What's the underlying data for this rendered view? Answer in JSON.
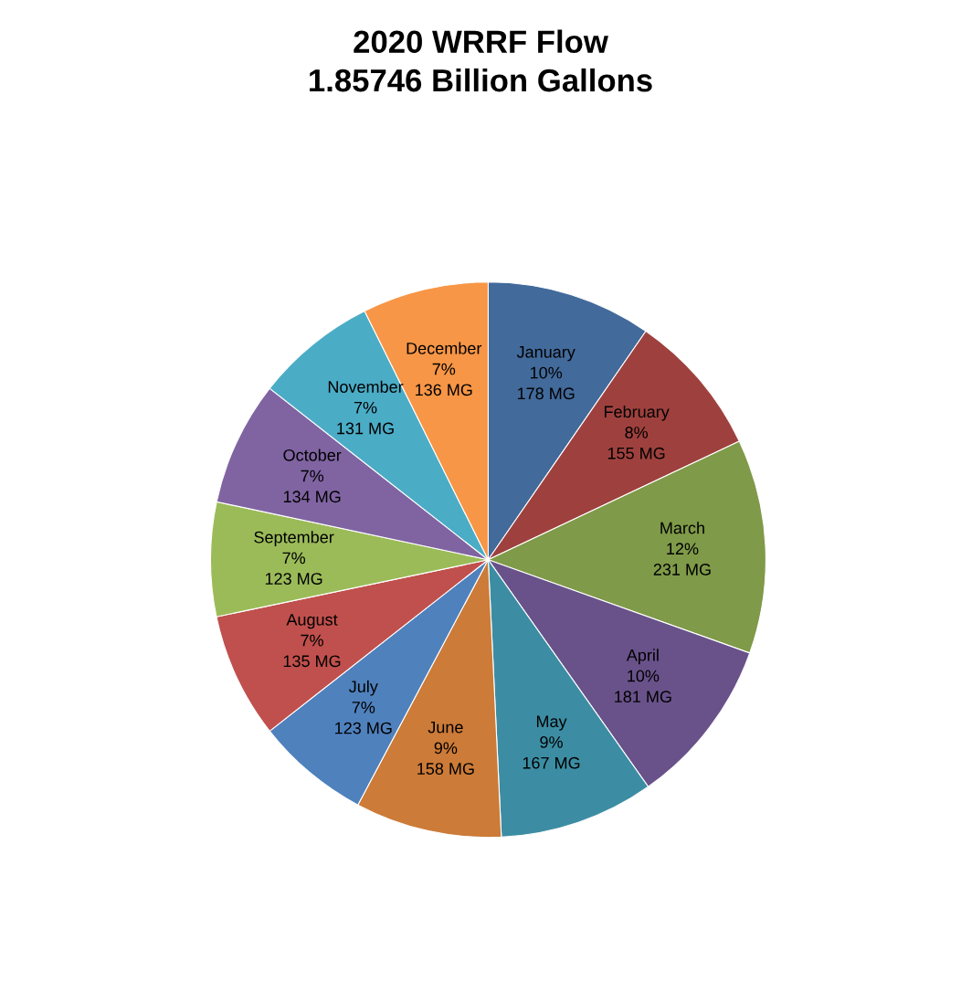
{
  "chart_data": {
    "type": "pie",
    "title": "2020 WRRF Flow\n1.85746 Billion Gallons",
    "categories": [
      "January",
      "February",
      "March",
      "April",
      "May",
      "June",
      "July",
      "August",
      "September",
      "October",
      "November",
      "December"
    ],
    "values": [
      178,
      155,
      231,
      181,
      167,
      158,
      123,
      135,
      123,
      134,
      131,
      136
    ],
    "value_labels": [
      "10%\n178 MG",
      "8%\n155 MG",
      "12%\n231 MG",
      "10%\n181 MG",
      "9%\n167 MG",
      "9%\n158 MG",
      "7%\n123 MG",
      "7%\n135 MG",
      "7%\n123 MG",
      "7%\n134 MG",
      "7%\n131 MG",
      "7%\n136 MG"
    ],
    "colors": [
      "#426a9b",
      "#9e413e",
      "#7f9a48",
      "#69528a",
      "#3c8da3",
      "#cc7b38",
      "#4f81bd",
      "#c0504d",
      "#9bbb59",
      "#8064a2",
      "#4bacc6",
      "#f79646"
    ],
    "legend": false
  }
}
